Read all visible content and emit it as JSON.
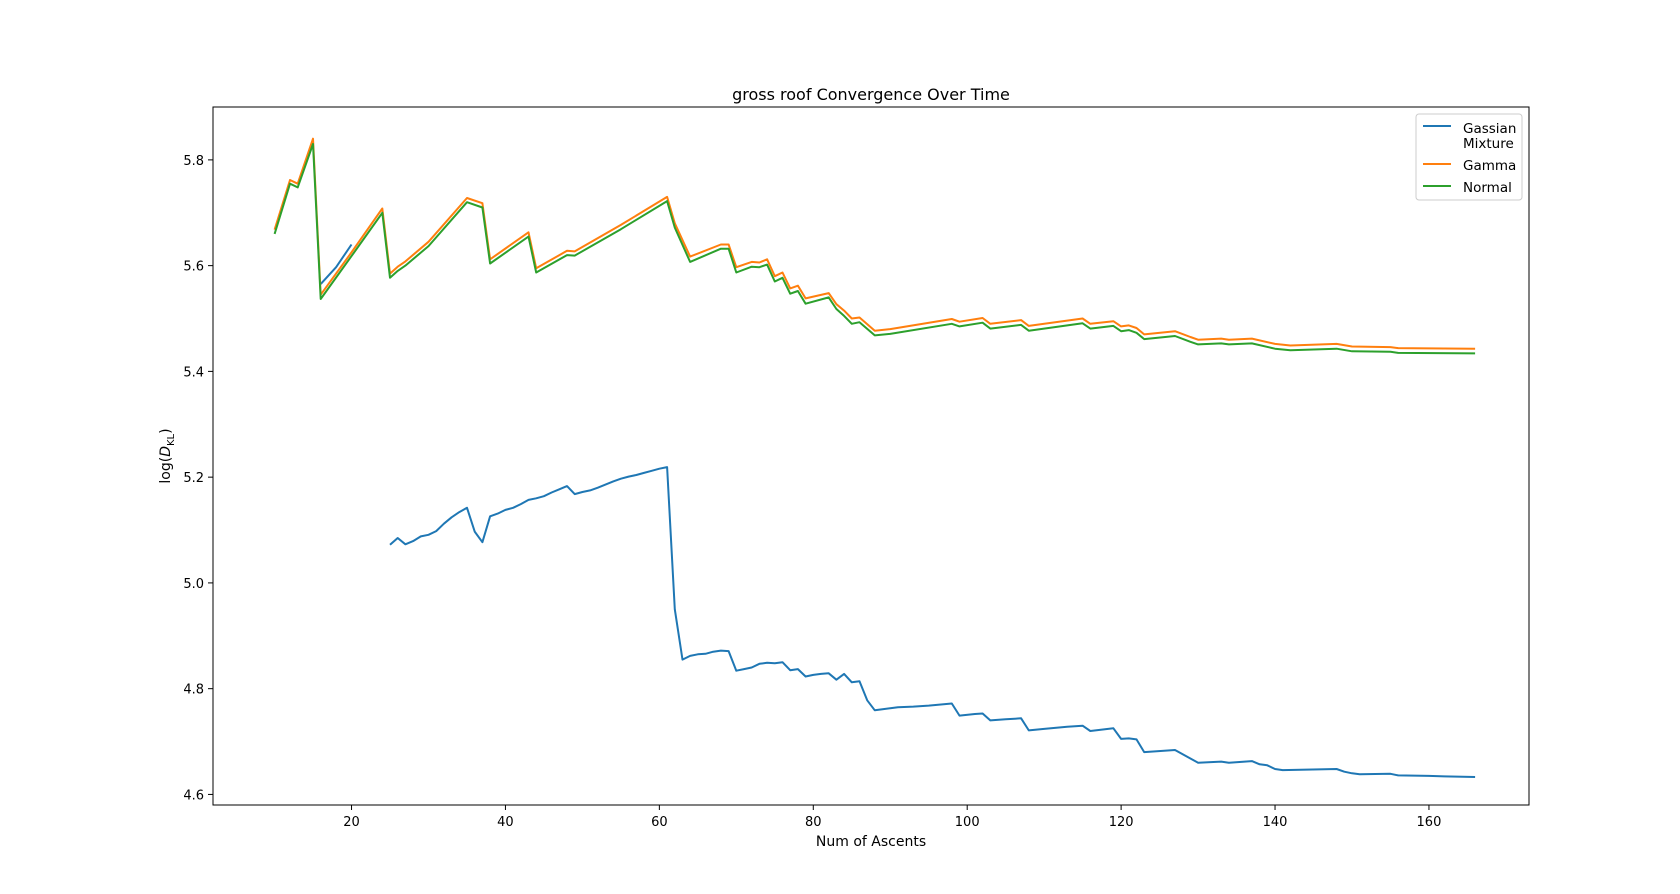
{
  "chart_data": {
    "type": "line",
    "title": "gross roof Convergence Over Time",
    "xlabel": "Num of Ascents",
    "ylabel_prefix": "log(",
    "ylabel_var": "D",
    "ylabel_sub": "KL",
    "ylabel_suffix": ")",
    "xlim": [
      2,
      173
    ],
    "ylim": [
      4.58,
      5.9
    ],
    "xticks": [
      20,
      40,
      60,
      80,
      100,
      120,
      140,
      160
    ],
    "yticks": [
      4.6,
      4.8,
      5.0,
      5.2,
      5.4,
      5.6,
      5.8
    ],
    "grid": false,
    "legend_position": "top-right",
    "series": [
      {
        "name_lines": [
          "Gassian",
          "Mixture"
        ],
        "color": "#1f77b4",
        "segments": [
          [
            [
              16,
              5.565
            ],
            [
              18,
              5.597
            ],
            [
              20,
              5.64
            ]
          ],
          [
            [
              25,
              5.072
            ],
            [
              26,
              5.085
            ],
            [
              27,
              5.073
            ],
            [
              28,
              5.079
            ],
            [
              29,
              5.088
            ],
            [
              30,
              5.091
            ],
            [
              31,
              5.098
            ],
            [
              32,
              5.112
            ],
            [
              33,
              5.124
            ],
            [
              34,
              5.134
            ],
            [
              35,
              5.142
            ],
            [
              36,
              5.097
            ],
            [
              37,
              5.077
            ],
            [
              38,
              5.126
            ],
            [
              39,
              5.131
            ],
            [
              40,
              5.138
            ],
            [
              41,
              5.142
            ],
            [
              42,
              5.149
            ],
            [
              43,
              5.157
            ],
            [
              44,
              5.16
            ],
            [
              45,
              5.164
            ],
            [
              46,
              5.171
            ],
            [
              47,
              5.177
            ],
            [
              48,
              5.183
            ],
            [
              49,
              5.168
            ],
            [
              50,
              5.172
            ],
            [
              51,
              5.175
            ],
            [
              52,
              5.18
            ],
            [
              53,
              5.186
            ],
            [
              54,
              5.192
            ],
            [
              55,
              5.197
            ],
            [
              56,
              5.201
            ],
            [
              57,
              5.204
            ],
            [
              58,
              5.208
            ],
            [
              59,
              5.212
            ],
            [
              60,
              5.216
            ],
            [
              61,
              5.219
            ],
            [
              62,
              4.95
            ],
            [
              63,
              4.855
            ],
            [
              64,
              4.862
            ],
            [
              65,
              4.865
            ],
            [
              66,
              4.866
            ],
            [
              67,
              4.87
            ],
            [
              68,
              4.872
            ],
            [
              69,
              4.871
            ],
            [
              70,
              4.834
            ],
            [
              71,
              4.837
            ],
            [
              72,
              4.84
            ],
            [
              73,
              4.847
            ],
            [
              74,
              4.849
            ],
            [
              75,
              4.848
            ],
            [
              76,
              4.85
            ],
            [
              77,
              4.835
            ],
            [
              78,
              4.837
            ],
            [
              79,
              4.823
            ],
            [
              80,
              4.826
            ],
            [
              81,
              4.828
            ],
            [
              82,
              4.829
            ],
            [
              83,
              4.817
            ],
            [
              84,
              4.828
            ],
            [
              85,
              4.812
            ],
            [
              86,
              4.814
            ],
            [
              87,
              4.778
            ],
            [
              88,
              4.759
            ],
            [
              89,
              4.761
            ],
            [
              90,
              4.763
            ],
            [
              91,
              4.765
            ],
            [
              93,
              4.766
            ],
            [
              95,
              4.768
            ],
            [
              98,
              4.772
            ],
            [
              99,
              4.749
            ],
            [
              101,
              4.752
            ],
            [
              102,
              4.753
            ],
            [
              103,
              4.74
            ],
            [
              105,
              4.742
            ],
            [
              107,
              4.744
            ],
            [
              108,
              4.721
            ],
            [
              110,
              4.724
            ],
            [
              113,
              4.728
            ],
            [
              115,
              4.73
            ],
            [
              116,
              4.72
            ],
            [
              119,
              4.725
            ],
            [
              120,
              4.705
            ],
            [
              121,
              4.706
            ],
            [
              122,
              4.704
            ],
            [
              123,
              4.68
            ],
            [
              127,
              4.684
            ],
            [
              129,
              4.668
            ],
            [
              130,
              4.66
            ],
            [
              133,
              4.662
            ],
            [
              134,
              4.66
            ],
            [
              137,
              4.663
            ],
            [
              138,
              4.657
            ],
            [
              139,
              4.655
            ],
            [
              140,
              4.648
            ],
            [
              141,
              4.646
            ],
            [
              148,
              4.648
            ],
            [
              149,
              4.643
            ],
            [
              150,
              4.64
            ],
            [
              151,
              4.638
            ],
            [
              155,
              4.639
            ],
            [
              156,
              4.636
            ],
            [
              160,
              4.635
            ],
            [
              162,
              4.634
            ],
            [
              166,
              4.633
            ]
          ]
        ]
      },
      {
        "name_lines": [
          "Gamma"
        ],
        "color": "#ff7f0e",
        "segments": [
          [
            [
              10,
              5.668
            ],
            [
              12,
              5.762
            ],
            [
              13,
              5.755
            ],
            [
              15,
              5.84
            ],
            [
              16,
              5.545
            ],
            [
              20,
              5.625
            ],
            [
              24,
              5.708
            ],
            [
              25,
              5.585
            ],
            [
              26,
              5.598
            ],
            [
              27,
              5.608
            ],
            [
              30,
              5.645
            ],
            [
              35,
              5.728
            ],
            [
              37,
              5.718
            ],
            [
              38,
              5.612
            ],
            [
              43,
              5.663
            ],
            [
              44,
              5.595
            ],
            [
              48,
              5.628
            ],
            [
              49,
              5.627
            ],
            [
              55,
              5.677
            ],
            [
              61,
              5.73
            ],
            [
              62,
              5.68
            ],
            [
              64,
              5.617
            ],
            [
              68,
              5.64
            ],
            [
              69,
              5.64
            ],
            [
              70,
              5.597
            ],
            [
              72,
              5.607
            ],
            [
              73,
              5.606
            ],
            [
              74,
              5.612
            ],
            [
              75,
              5.58
            ],
            [
              76,
              5.587
            ],
            [
              77,
              5.557
            ],
            [
              78,
              5.562
            ],
            [
              79,
              5.538
            ],
            [
              82,
              5.548
            ],
            [
              83,
              5.527
            ],
            [
              84,
              5.515
            ],
            [
              85,
              5.5
            ],
            [
              86,
              5.502
            ],
            [
              88,
              5.477
            ],
            [
              90,
              5.48
            ],
            [
              98,
              5.499
            ],
            [
              99,
              5.494
            ],
            [
              102,
              5.501
            ],
            [
              103,
              5.49
            ],
            [
              107,
              5.497
            ],
            [
              108,
              5.486
            ],
            [
              115,
              5.5
            ],
            [
              116,
              5.49
            ],
            [
              119,
              5.495
            ],
            [
              120,
              5.485
            ],
            [
              121,
              5.487
            ],
            [
              122,
              5.482
            ],
            [
              123,
              5.47
            ],
            [
              127,
              5.476
            ],
            [
              129,
              5.465
            ],
            [
              130,
              5.46
            ],
            [
              133,
              5.462
            ],
            [
              134,
              5.46
            ],
            [
              137,
              5.462
            ],
            [
              140,
              5.452
            ],
            [
              142,
              5.449
            ],
            [
              148,
              5.452
            ],
            [
              150,
              5.447
            ],
            [
              155,
              5.446
            ],
            [
              156,
              5.444
            ],
            [
              166,
              5.443
            ]
          ]
        ]
      },
      {
        "name_lines": [
          "Normal"
        ],
        "color": "#2ca02c",
        "segments": [
          [
            [
              10,
              5.66
            ],
            [
              12,
              5.755
            ],
            [
              13,
              5.748
            ],
            [
              15,
              5.83
            ],
            [
              16,
              5.537
            ],
            [
              20,
              5.618
            ],
            [
              24,
              5.7
            ],
            [
              25,
              5.577
            ],
            [
              26,
              5.59
            ],
            [
              27,
              5.6
            ],
            [
              30,
              5.637
            ],
            [
              35,
              5.72
            ],
            [
              37,
              5.71
            ],
            [
              38,
              5.604
            ],
            [
              43,
              5.655
            ],
            [
              44,
              5.587
            ],
            [
              48,
              5.62
            ],
            [
              49,
              5.619
            ],
            [
              55,
              5.669
            ],
            [
              61,
              5.722
            ],
            [
              62,
              5.672
            ],
            [
              64,
              5.607
            ],
            [
              68,
              5.632
            ],
            [
              69,
              5.632
            ],
            [
              70,
              5.587
            ],
            [
              72,
              5.598
            ],
            [
              73,
              5.597
            ],
            [
              74,
              5.602
            ],
            [
              75,
              5.57
            ],
            [
              76,
              5.577
            ],
            [
              77,
              5.547
            ],
            [
              78,
              5.552
            ],
            [
              79,
              5.528
            ],
            [
              82,
              5.54
            ],
            [
              83,
              5.518
            ],
            [
              84,
              5.505
            ],
            [
              85,
              5.49
            ],
            [
              86,
              5.493
            ],
            [
              88,
              5.468
            ],
            [
              90,
              5.471
            ],
            [
              98,
              5.49
            ],
            [
              99,
              5.485
            ],
            [
              102,
              5.492
            ],
            [
              103,
              5.481
            ],
            [
              107,
              5.488
            ],
            [
              108,
              5.477
            ],
            [
              115,
              5.491
            ],
            [
              116,
              5.481
            ],
            [
              119,
              5.486
            ],
            [
              120,
              5.476
            ],
            [
              121,
              5.478
            ],
            [
              122,
              5.473
            ],
            [
              123,
              5.461
            ],
            [
              127,
              5.467
            ],
            [
              129,
              5.456
            ],
            [
              130,
              5.451
            ],
            [
              133,
              5.453
            ],
            [
              134,
              5.451
            ],
            [
              137,
              5.453
            ],
            [
              140,
              5.443
            ],
            [
              142,
              5.44
            ],
            [
              148,
              5.443
            ],
            [
              150,
              5.438
            ],
            [
              155,
              5.437
            ],
            [
              156,
              5.435
            ],
            [
              166,
              5.434
            ]
          ]
        ]
      }
    ]
  }
}
